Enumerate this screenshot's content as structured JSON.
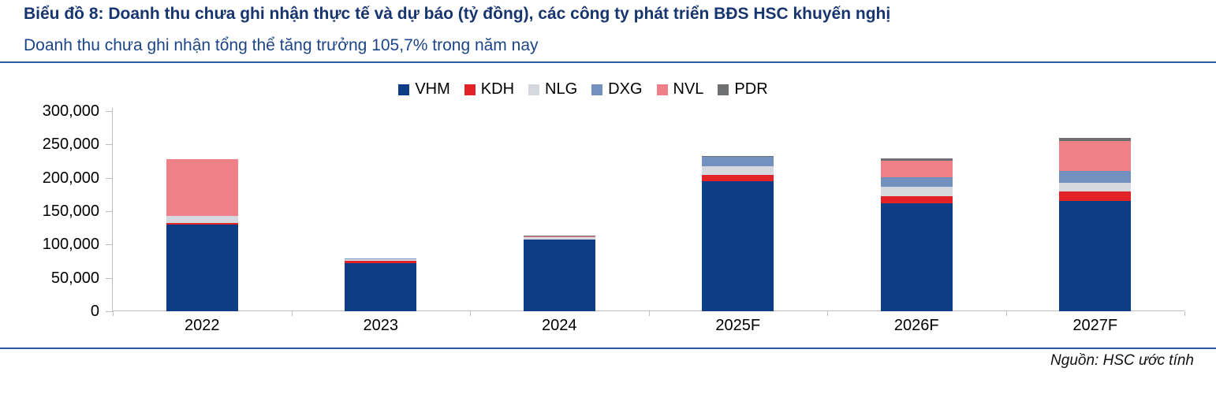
{
  "header": {
    "title": "Biểu đồ 8: Doanh thu chưa ghi nhận thực tế và dự báo (tỷ đồng), các công ty phát triển BĐS HSC khuyến nghị",
    "subtitle": "Doanh thu chưa ghi nhận tổng thể tăng trưởng 105,7% trong năm nay"
  },
  "source": "Nguồn: HSC ước tính",
  "colors": {
    "title_blue": "#17356F",
    "subtitle_blue": "#1C4587",
    "rule_blue": "#2A5CA8",
    "axis_gray": "#BFBFBF"
  },
  "chart_data": {
    "type": "bar",
    "stacked": true,
    "title": "Doanh thu chưa ghi nhận thực tế và dự báo (tỷ đồng), các công ty phát triển BĐS HSC khuyến nghị",
    "xlabel": "",
    "ylabel": "",
    "ylim": [
      0,
      300000
    ],
    "grid": false,
    "legend_position": "top",
    "categories": [
      "2022",
      "2023",
      "2024",
      "2025F",
      "2026F",
      "2027F"
    ],
    "yticks": [
      0,
      50000,
      100000,
      150000,
      200000,
      250000,
      300000
    ],
    "ytick_labels": [
      "0",
      "50,000",
      "100,000",
      "150,000",
      "200,000",
      "250,000",
      "300,000"
    ],
    "series": [
      {
        "name": "VHM",
        "color": "#0D3D84",
        "values": [
          130000,
          72000,
          107000,
          195000,
          162000,
          165000
        ]
      },
      {
        "name": "KDH",
        "color": "#E32228",
        "values": [
          2500,
          4000,
          1000,
          9000,
          11000,
          14000
        ]
      },
      {
        "name": "NLG",
        "color": "#D5D9DF",
        "values": [
          11000,
          1500,
          3000,
          13000,
          14000,
          14000
        ]
      },
      {
        "name": "DXG",
        "color": "#7291BE",
        "values": [
          0,
          1500,
          0,
          15000,
          14000,
          17000
        ]
      },
      {
        "name": "NVL",
        "color": "#F08087",
        "values": [
          84000,
          0,
          1500,
          0,
          25000,
          45000
        ]
      },
      {
        "name": "PDR",
        "color": "#6E6F71",
        "values": [
          0,
          0,
          1000,
          1000,
          3000,
          5000
        ]
      }
    ],
    "totals_approx": [
      227500,
      79000,
      113500,
      233000,
      229000,
      260000
    ]
  }
}
